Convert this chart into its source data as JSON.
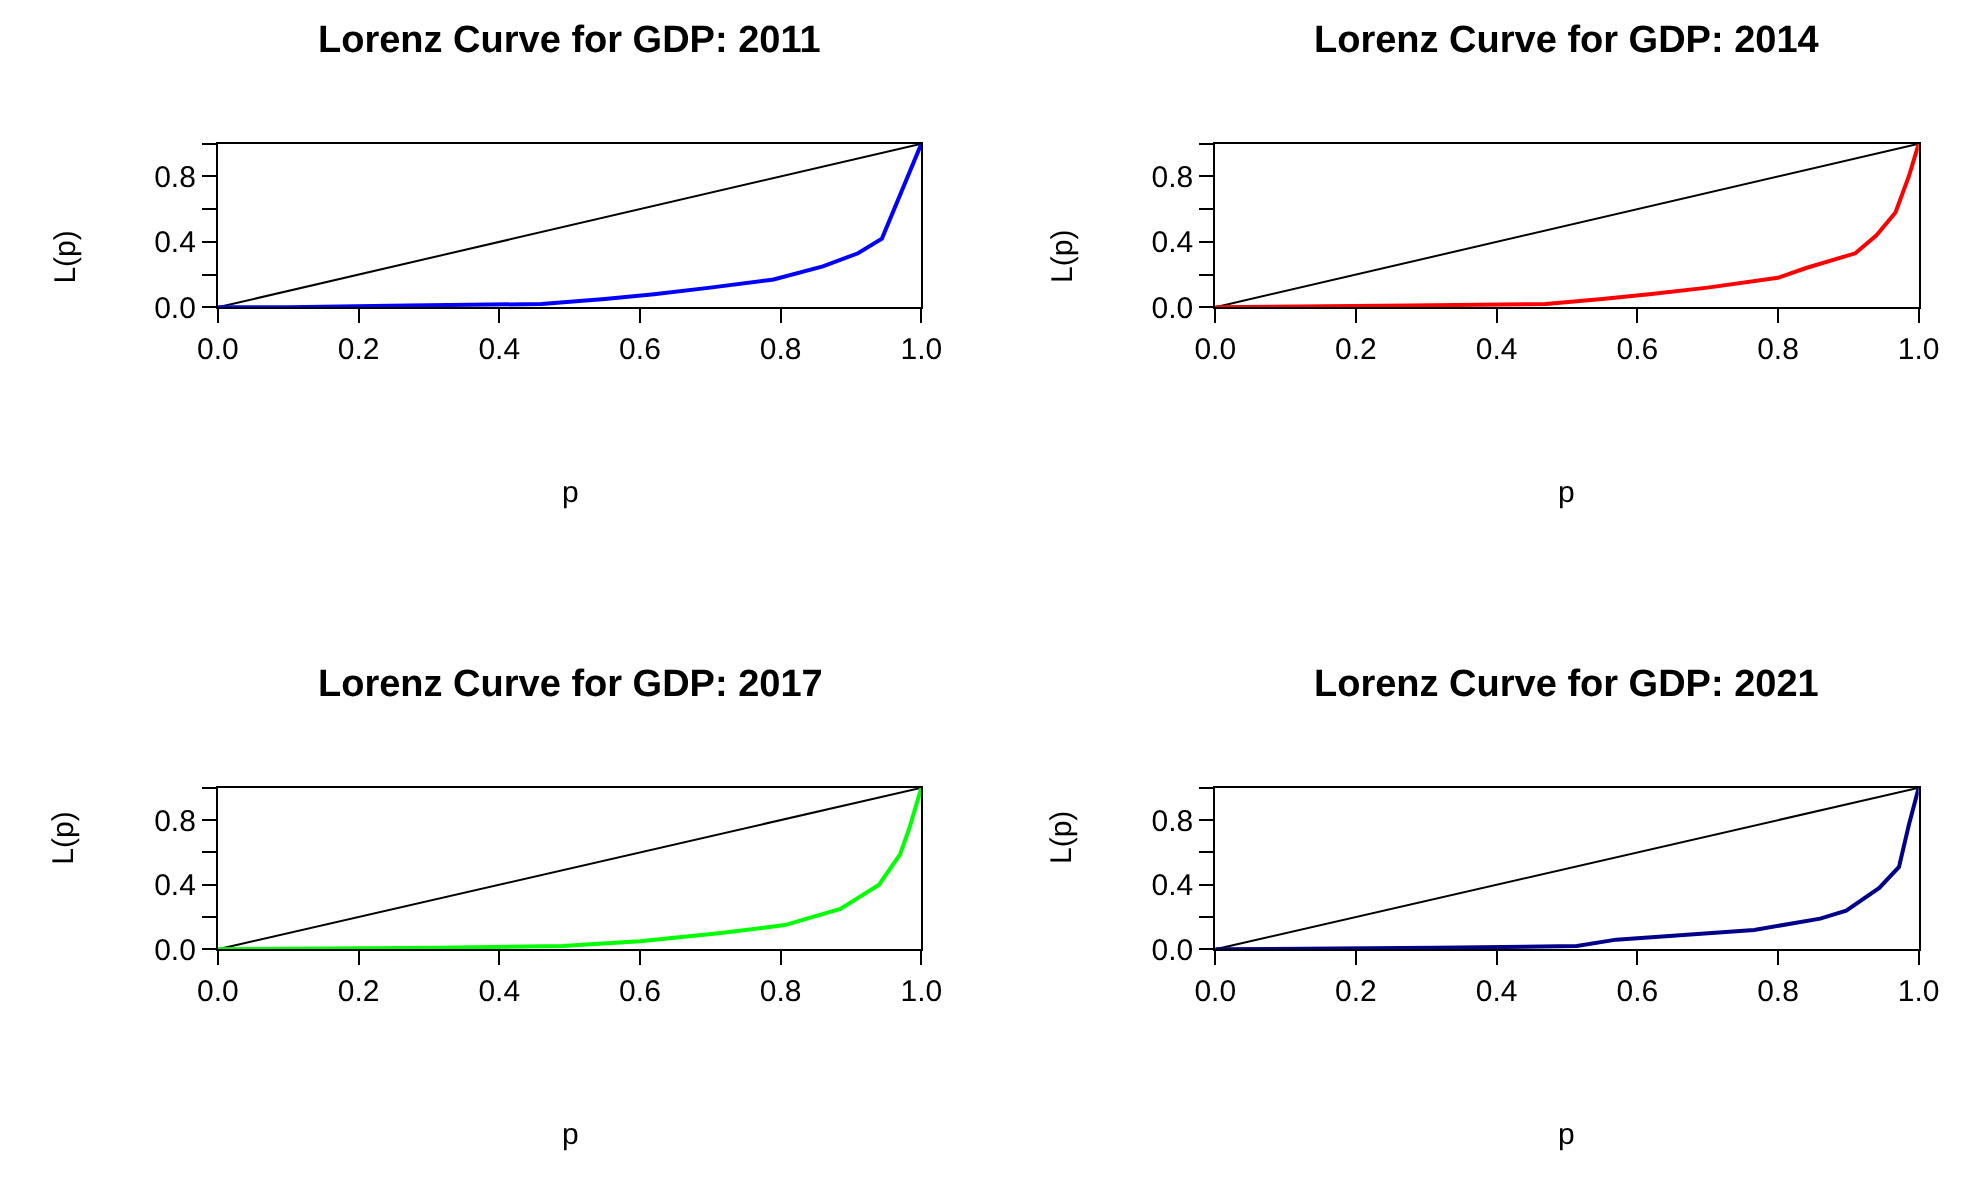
{
  "chart_data": [
    {
      "type": "line",
      "title": "Lorenz Curve for GDP: 2011",
      "xlabel": "p",
      "ylabel": "L(p)",
      "xlim": [
        0,
        1
      ],
      "ylim": [
        0,
        1
      ],
      "xticks": [
        {
          "value": 0,
          "label": "0.0"
        },
        {
          "value": 0.2,
          "label": "0.2"
        },
        {
          "value": 0.4,
          "label": "0.4"
        },
        {
          "value": 0.6,
          "label": "0.6"
        },
        {
          "value": 0.8,
          "label": "0.8"
        },
        {
          "value": 1,
          "label": "1.0"
        }
      ],
      "yticks": [
        {
          "value": 0,
          "label": "0.0"
        },
        {
          "value": 0.2,
          "label": null
        },
        {
          "value": 0.4,
          "label": "0.4"
        },
        {
          "value": 0.6,
          "label": null
        },
        {
          "value": 0.8,
          "label": "0.8"
        },
        {
          "value": 1,
          "label": null
        }
      ],
      "marker": "none",
      "line_style": "solid",
      "series": [
        {
          "color": "#000000",
          "x": [
            0,
            1
          ],
          "values": [
            0,
            1
          ]
        },
        {
          "color": "#0000ff",
          "x": [
            0,
            0.1,
            0.27,
            0.46,
            0.55,
            0.62,
            0.7,
            0.79,
            0.86,
            0.91,
            0.944,
            1
          ],
          "values": [
            0,
            0,
            0.01,
            0.02,
            0.05,
            0.08,
            0.12,
            0.17,
            0.25,
            0.33,
            0.42,
            1
          ]
        }
      ]
    },
    {
      "type": "line",
      "title": "Lorenz Curve for GDP: 2014",
      "xlabel": "p",
      "ylabel": "L(p)",
      "xlim": [
        0,
        1
      ],
      "ylim": [
        0,
        1
      ],
      "xticks": [
        {
          "value": 0,
          "label": "0.0"
        },
        {
          "value": 0.2,
          "label": "0.2"
        },
        {
          "value": 0.4,
          "label": "0.4"
        },
        {
          "value": 0.6,
          "label": "0.6"
        },
        {
          "value": 0.8,
          "label": "0.8"
        },
        {
          "value": 1,
          "label": "1.0"
        }
      ],
      "yticks": [
        {
          "value": 0,
          "label": "0.0"
        },
        {
          "value": 0.2,
          "label": null
        },
        {
          "value": 0.4,
          "label": "0.4"
        },
        {
          "value": 0.6,
          "label": null
        },
        {
          "value": 0.8,
          "label": "0.8"
        },
        {
          "value": 1,
          "label": null
        }
      ],
      "marker": "none",
      "line_style": "solid",
      "series": [
        {
          "color": "#000000",
          "x": [
            0,
            1
          ],
          "values": [
            0,
            1
          ]
        },
        {
          "color": "#ff0000",
          "x": [
            0,
            0.276,
            0.47,
            0.55,
            0.617,
            0.7,
            0.8,
            0.84,
            0.91,
            0.94,
            0.967,
            0.986,
            1
          ],
          "values": [
            0,
            0.01,
            0.02,
            0.05,
            0.08,
            0.12,
            0.18,
            0.24,
            0.33,
            0.44,
            0.58,
            0.8,
            1
          ]
        }
      ]
    },
    {
      "type": "line",
      "title": "Lorenz Curve for GDP: 2017",
      "xlabel": "p",
      "ylabel": "L(p)",
      "xlim": [
        0,
        1
      ],
      "ylim": [
        0,
        1
      ],
      "xticks": [
        {
          "value": 0,
          "label": "0.0"
        },
        {
          "value": 0.2,
          "label": "0.2"
        },
        {
          "value": 0.4,
          "label": "0.4"
        },
        {
          "value": 0.6,
          "label": "0.6"
        },
        {
          "value": 0.8,
          "label": "0.8"
        },
        {
          "value": 1,
          "label": "1.0"
        }
      ],
      "yticks": [
        {
          "value": 0,
          "label": "0.0"
        },
        {
          "value": 0.2,
          "label": null
        },
        {
          "value": 0.4,
          "label": "0.4"
        },
        {
          "value": 0.6,
          "label": null
        },
        {
          "value": 0.8,
          "label": "0.8"
        },
        {
          "value": 1,
          "label": null
        }
      ],
      "marker": "none",
      "line_style": "solid",
      "series": [
        {
          "color": "#000000",
          "x": [
            0,
            1
          ],
          "values": [
            0,
            1
          ]
        },
        {
          "color": "#00ff00",
          "x": [
            0,
            0.315,
            0.49,
            0.6,
            0.712,
            0.806,
            0.885,
            0.94,
            0.97,
            0.983,
            1
          ],
          "values": [
            0,
            0.01,
            0.02,
            0.05,
            0.1,
            0.15,
            0.25,
            0.4,
            0.59,
            0.75,
            1
          ]
        }
      ]
    },
    {
      "type": "line",
      "title": "Lorenz Curve for GDP: 2021",
      "xlabel": "p",
      "ylabel": "L(p)",
      "xlim": [
        0,
        1
      ],
      "ylim": [
        0,
        1
      ],
      "xticks": [
        {
          "value": 0,
          "label": "0.0"
        },
        {
          "value": 0.2,
          "label": "0.2"
        },
        {
          "value": 0.4,
          "label": "0.4"
        },
        {
          "value": 0.6,
          "label": "0.6"
        },
        {
          "value": 0.8,
          "label": "0.8"
        },
        {
          "value": 1,
          "label": "1.0"
        }
      ],
      "yticks": [
        {
          "value": 0,
          "label": "0.0"
        },
        {
          "value": 0.2,
          "label": null
        },
        {
          "value": 0.4,
          "label": "0.4"
        },
        {
          "value": 0.6,
          "label": null
        },
        {
          "value": 0.8,
          "label": "0.8"
        },
        {
          "value": 1,
          "label": null
        }
      ],
      "marker": "none",
      "line_style": "solid",
      "series": [
        {
          "color": "#000000",
          "x": [
            0,
            1
          ],
          "values": [
            0,
            1
          ]
        },
        {
          "color": "#00008b",
          "x": [
            0,
            0.313,
            0.514,
            0.57,
            0.766,
            0.86,
            0.897,
            0.944,
            0.972,
            0.986,
            1
          ],
          "values": [
            0,
            0.01,
            0.02,
            0.06,
            0.12,
            0.19,
            0.24,
            0.38,
            0.51,
            0.77,
            1
          ]
        }
      ]
    }
  ]
}
